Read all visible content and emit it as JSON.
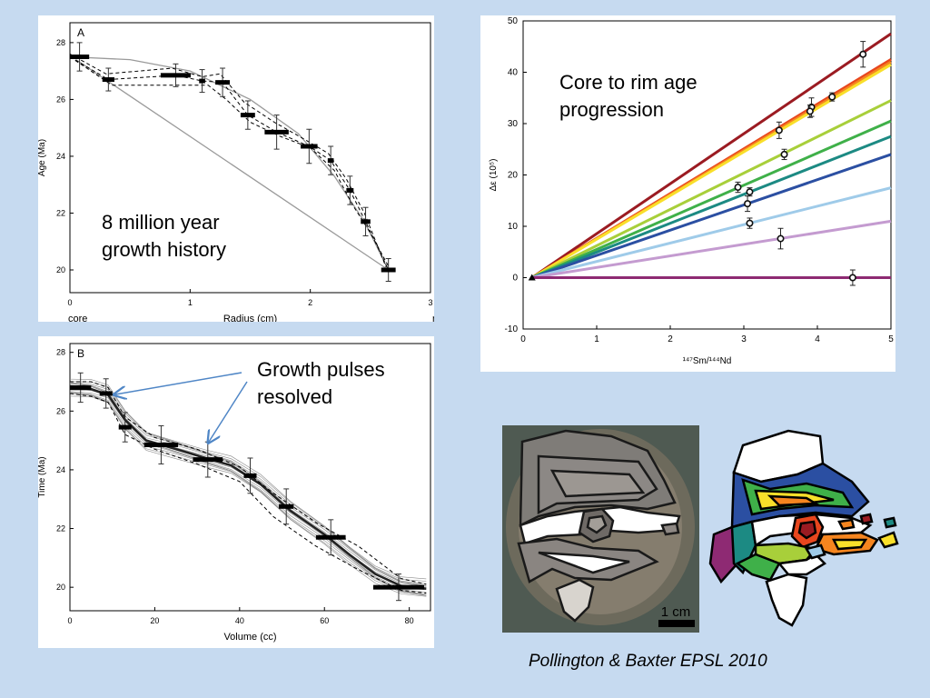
{
  "chart_data": [
    {
      "type": "line",
      "panel_label": "A",
      "title": "",
      "xlabel": "Radius (cm)",
      "ylabel": "Age (Ma)",
      "xlim": [
        0,
        3
      ],
      "ylim": [
        19.2,
        28.7
      ],
      "x_ticks": [
        0,
        1,
        2,
        3
      ],
      "y_ticks": [
        20,
        22,
        24,
        26,
        28
      ],
      "x_end_labels": {
        "left": "core",
        "right": "rim"
      },
      "grid": false,
      "measurements": [
        {
          "x": 0.08,
          "y": 27.5,
          "width": 0.16,
          "err": 0.5
        },
        {
          "x": 0.32,
          "y": 26.7,
          "width": 0.1,
          "err": 0.4
        },
        {
          "x": 0.88,
          "y": 26.85,
          "width": 0.25,
          "err": 0.4
        },
        {
          "x": 1.1,
          "y": 26.65,
          "width": 0.05,
          "err": 0.4
        },
        {
          "x": 1.27,
          "y": 26.6,
          "width": 0.12,
          "err": 0.5
        },
        {
          "x": 1.48,
          "y": 25.45,
          "width": 0.12,
          "err": 0.5
        },
        {
          "x": 1.72,
          "y": 24.85,
          "width": 0.2,
          "err": 0.6
        },
        {
          "x": 1.99,
          "y": 24.35,
          "width": 0.14,
          "err": 0.6
        },
        {
          "x": 2.17,
          "y": 23.85,
          "width": 0.05,
          "err": 0.5
        },
        {
          "x": 2.33,
          "y": 22.8,
          "width": 0.06,
          "err": 0.5
        },
        {
          "x": 2.46,
          "y": 21.7,
          "width": 0.08,
          "err": 0.5
        },
        {
          "x": 2.65,
          "y": 20.0,
          "width": 0.12,
          "err": 0.4
        }
      ],
      "series": [
        {
          "style": "solid-gray",
          "x": [
            0,
            0.5,
            1.0,
            1.5,
            1.9,
            2.2,
            2.45,
            2.65
          ],
          "y": [
            27.5,
            27.4,
            27.0,
            26.0,
            24.8,
            23.3,
            21.7,
            20.0
          ]
        },
        {
          "style": "solid-gray",
          "x": [
            0.05,
            2.65
          ],
          "y": [
            27.4,
            20.0
          ]
        },
        {
          "style": "dashed",
          "x": [
            0,
            0.32,
            0.88,
            1.1,
            1.27,
            1.48,
            1.72,
            1.99,
            2.17,
            2.33,
            2.46,
            2.65
          ],
          "y": [
            27.5,
            26.7,
            26.85,
            26.65,
            26.6,
            25.45,
            24.85,
            24.35,
            23.85,
            22.8,
            21.7,
            20.0
          ]
        },
        {
          "style": "dashed",
          "x": [
            0,
            0.35,
            0.9,
            1.15,
            1.3,
            1.5,
            1.75,
            2.0,
            2.2,
            2.35,
            2.5,
            2.68
          ],
          "y": [
            27.5,
            26.5,
            26.5,
            26.5,
            26.0,
            25.2,
            24.7,
            24.3,
            23.5,
            22.3,
            21.3,
            19.9
          ]
        },
        {
          "style": "dashed",
          "x": [
            0,
            0.3,
            0.85,
            1.1,
            1.25,
            1.45,
            1.7,
            1.95,
            2.15,
            2.3,
            2.45,
            2.63
          ],
          "y": [
            27.6,
            26.9,
            27.1,
            26.8,
            26.9,
            25.9,
            25.2,
            24.6,
            24.1,
            23.2,
            22.0,
            20.1
          ]
        }
      ]
    },
    {
      "type": "line",
      "panel_label": "B",
      "title": "",
      "xlabel": "Volume (cc)",
      "ylabel": "Time (Ma)",
      "xlim": [
        0,
        85
      ],
      "ylim": [
        19.2,
        28.3
      ],
      "x_ticks": [
        0,
        20,
        40,
        60,
        80
      ],
      "y_ticks": [
        20,
        22,
        24,
        26,
        28
      ],
      "grid": false,
      "measurements": [
        {
          "x": 2.5,
          "y": 26.8,
          "width": 5,
          "err": 0.5
        },
        {
          "x": 8.5,
          "y": 26.6,
          "width": 3,
          "err": 0.5
        },
        {
          "x": 13,
          "y": 25.45,
          "width": 3,
          "err": 0.5
        },
        {
          "x": 21.5,
          "y": 24.85,
          "width": 8,
          "err": 0.65
        },
        {
          "x": 32.5,
          "y": 24.35,
          "width": 7,
          "err": 0.6
        },
        {
          "x": 42.5,
          "y": 23.8,
          "width": 3,
          "err": 0.6
        },
        {
          "x": 51,
          "y": 22.75,
          "width": 3.5,
          "err": 0.6
        },
        {
          "x": 61.5,
          "y": 21.7,
          "width": 7,
          "err": 0.6
        },
        {
          "x": 77.5,
          "y": 20.0,
          "width": 12,
          "err": 0.45
        }
      ],
      "series": [
        {
          "style": "model-band",
          "x": [
            0,
            5,
            9,
            13,
            18,
            24,
            32,
            38,
            45,
            52,
            60,
            66,
            72,
            78,
            84
          ],
          "y": [
            26.8,
            26.75,
            26.55,
            25.7,
            25.0,
            24.75,
            24.4,
            24.15,
            23.5,
            22.6,
            21.8,
            21.1,
            20.45,
            20.05,
            19.95
          ]
        },
        {
          "style": "dashed",
          "x": [
            0,
            5,
            9,
            13,
            20,
            30,
            40,
            48,
            58,
            68,
            78,
            84
          ],
          "y": [
            27.0,
            27.0,
            26.8,
            25.8,
            25.1,
            24.7,
            24.1,
            23.2,
            22.2,
            21.4,
            20.3,
            20.1
          ]
        },
        {
          "style": "dashed",
          "x": [
            0,
            5,
            9,
            13,
            20,
            30,
            40,
            48,
            58,
            68,
            78,
            84
          ],
          "y": [
            26.6,
            26.5,
            26.3,
            25.2,
            24.7,
            24.2,
            23.6,
            22.4,
            21.4,
            20.6,
            19.9,
            19.8
          ]
        }
      ]
    },
    {
      "type": "line",
      "title": "",
      "xlabel": "¹⁴⁷Sm/¹⁴⁴Nd",
      "ylabel": "Δε (10⁵)",
      "xlim": [
        0,
        5
      ],
      "ylim": [
        -10,
        50
      ],
      "x_ticks": [
        0,
        1,
        2,
        3,
        4,
        5
      ],
      "y_ticks": [
        -10,
        0,
        10,
        20,
        30,
        40,
        50
      ],
      "grid": false,
      "origin_point": {
        "x": 0.12,
        "y": 0
      },
      "isochrons": [
        {
          "color": "#9b1b22",
          "y_at_5": 47.5
        },
        {
          "color": "#e8461e",
          "y_at_5": 42.5
        },
        {
          "color": "#f5851f",
          "y_at_5": 42.0
        },
        {
          "color": "#f9df2a",
          "y_at_5": 41.5
        },
        {
          "color": "#a8cf3a",
          "y_at_5": 34.5
        },
        {
          "color": "#3fb049",
          "y_at_5": 30.5
        },
        {
          "color": "#1c8a83",
          "y_at_5": 27.5
        },
        {
          "color": "#2b4fa2",
          "y_at_5": 24.0
        },
        {
          "color": "#9fcbe9",
          "y_at_5": 17.5
        },
        {
          "color": "#c49bd0",
          "y_at_5": 11.0
        },
        {
          "color": "#8e2a73",
          "y_at_5": 0.0
        }
      ],
      "points": [
        {
          "x": 4.62,
          "y": 43.5,
          "err": 2.5
        },
        {
          "x": 4.2,
          "y": 35.2,
          "err": 0.8
        },
        {
          "x": 3.92,
          "y": 33.2,
          "err": 1.8
        },
        {
          "x": 3.9,
          "y": 32.4,
          "err": 1.2
        },
        {
          "x": 3.48,
          "y": 28.7,
          "err": 1.6
        },
        {
          "x": 3.55,
          "y": 24.0,
          "err": 1.0
        },
        {
          "x": 2.92,
          "y": 17.6,
          "err": 1.0
        },
        {
          "x": 3.08,
          "y": 16.7,
          "err": 0.8
        },
        {
          "x": 3.05,
          "y": 14.4,
          "err": 1.5
        },
        {
          "x": 3.08,
          "y": 10.6,
          "err": 1.0
        },
        {
          "x": 3.5,
          "y": 7.6,
          "err": 2.0
        },
        {
          "x": 4.48,
          "y": 0.0,
          "err": 1.5
        }
      ]
    }
  ],
  "annotations": {
    "panel_a": [
      "8 million year",
      "growth history"
    ],
    "panel_b": [
      "Growth pulses",
      "resolved"
    ],
    "isochron": [
      "Core to rim age",
      "progression"
    ]
  },
  "scale_bar": "1 cm",
  "citation": "Pollington & Baxter EPSL 2010",
  "colors": {
    "background": "#c6daf0",
    "arrow": "#4f86c6"
  }
}
